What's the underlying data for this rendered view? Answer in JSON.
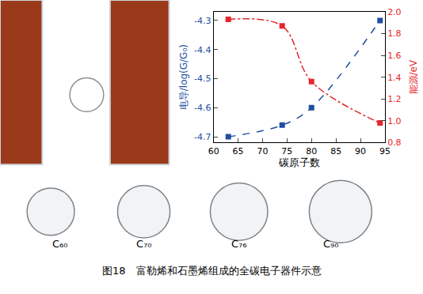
{
  "chart_data": {
    "type": "line",
    "x_label": "碳原子数",
    "y_label": "电导/log(G/G₀)",
    "y2_label": "能源/eV",
    "xlim": [
      60,
      95
    ],
    "xticks": [
      60,
      65,
      70,
      75,
      80,
      85,
      90,
      95
    ],
    "ylim": [
      -4.72,
      -4.27
    ],
    "yticks": [
      -4.7,
      -4.6,
      -4.5,
      -4.4,
      -4.3
    ],
    "y2lim": [
      0.8,
      2.0
    ],
    "y2ticks": [
      0.8,
      {
        "value": 1.0,
        "label": "1.0"
      },
      1.2,
      1.4,
      1.6,
      1.8,
      {
        "value": 2.0,
        "label": "2.0"
      }
    ],
    "x": [
      63,
      74,
      80,
      94
    ],
    "series": [
      {
        "color": "#1f4ea1",
        "values": [
          -4.7,
          -4.66,
          -4.6,
          -4.3
        ],
        "marker": "square",
        "line_style": "dash"
      },
      {
        "color": "#e5262b",
        "values": [
          1.93,
          1.87,
          1.36,
          0.98
        ],
        "marker": "square",
        "line_style": "dashdot",
        "axis": "y2"
      }
    ],
    "annotations": [
      "C₆₀",
      "C₇₀",
      "C₇₆",
      "C₉₀"
    ],
    "caption": "图18　富勒烯和石墨烯组成的全碳电子器件示意"
  }
}
